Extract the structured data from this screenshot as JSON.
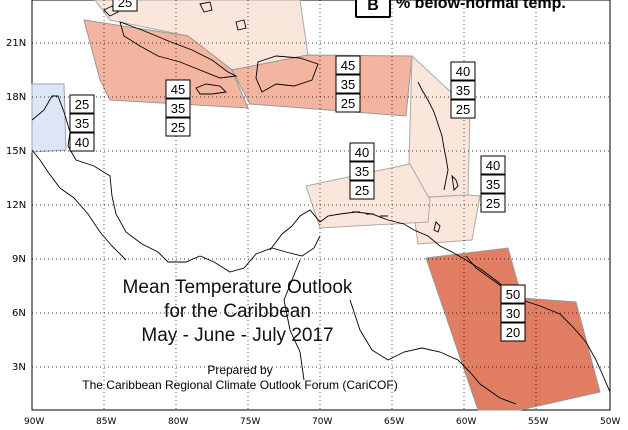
{
  "map": {
    "title_lines": [
      "Mean Temperature Outlook",
      "for the Caribbean",
      "May - June - July 2017"
    ],
    "credit_lines": [
      "Prepared by",
      "The Caribbean Regional Climate Outlook Forum (CariCOF)"
    ],
    "legend": {
      "key": "B",
      "text": "% below-normal temp."
    },
    "lat_labels": [
      "21N",
      "18N",
      "15N",
      "12N",
      "9N",
      "6N",
      "3N"
    ],
    "lon_labels": [
      "90W",
      "85W",
      "80W",
      "75W",
      "70W",
      "65W",
      "60W",
      "55W",
      "50W"
    ],
    "colors": {
      "light_blue": "#dce6f5",
      "light_peach": "#fbe6dc",
      "peach": "#f3b5a0",
      "orange": "#e07d62",
      "border": "#999999"
    },
    "regions": [
      {
        "id": "top-left-partial",
        "values": [
          "25"
        ]
      },
      {
        "id": "belize-yucatan",
        "values": [
          "25",
          "35",
          "40"
        ]
      },
      {
        "id": "cuba-jamaica",
        "values": [
          "45",
          "35",
          "25"
        ]
      },
      {
        "id": "hispaniola-pr",
        "values": [
          "45",
          "35",
          "25"
        ]
      },
      {
        "id": "leeward-islands",
        "values": [
          "40",
          "35",
          "25"
        ]
      },
      {
        "id": "barbados-windward",
        "values": [
          "40",
          "35",
          "25"
        ]
      },
      {
        "id": "abc-islands",
        "values": [
          "40",
          "35",
          "25"
        ]
      },
      {
        "id": "guianas",
        "values": [
          "50",
          "30",
          "20"
        ]
      }
    ]
  }
}
